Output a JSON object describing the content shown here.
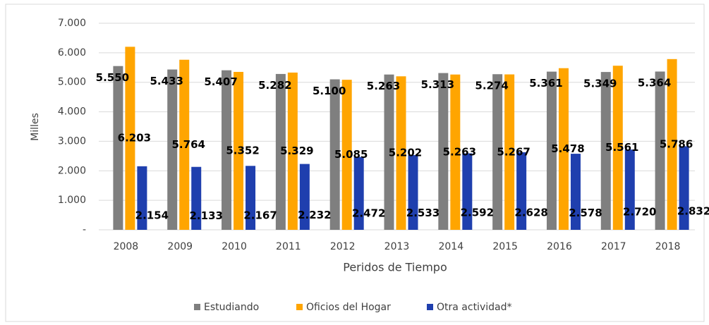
{
  "chart_data": {
    "type": "bar",
    "y_label": "Milles",
    "x_label": "Peridos de Tiempo",
    "categories": [
      "2008",
      "2009",
      "2010",
      "2011",
      "2012",
      "2013",
      "2014",
      "2015",
      "2016",
      "2017",
      "2018"
    ],
    "series": [
      {
        "name": "Estudiando",
        "color": "#7f7f7f",
        "values": [
          5550,
          5433,
          5407,
          5282,
          5100,
          5263,
          5313,
          5274,
          5361,
          5349,
          5364
        ],
        "value_labels": [
          "5.550",
          "5.433",
          "5.407",
          "5.282",
          "5.100",
          "5.263",
          "5.313",
          "5.274",
          "5.361",
          "5.349",
          "5.364"
        ]
      },
      {
        "name": "Oficios del Hogar",
        "color": "#ffa500",
        "values": [
          6203,
          5764,
          5352,
          5329,
          5085,
          5202,
          5263,
          5267,
          5478,
          5561,
          5786
        ],
        "value_labels": [
          "6.203",
          "5.764",
          "5.352",
          "5.329",
          "5.085",
          "5.202",
          "5.263",
          "5.267",
          "5.478",
          "5.561",
          "5.786"
        ]
      },
      {
        "name": "Otra actividad*",
        "color": "#1f3fae",
        "values": [
          2154,
          2133,
          2167,
          2232,
          2472,
          2533,
          2592,
          2628,
          2578,
          2720,
          2832
        ],
        "value_labels": [
          "2.154",
          "2.133",
          "2.167",
          "2.232",
          "2.472",
          "2.533",
          "2.592",
          "2.628",
          "2.578",
          "2.720",
          "2.832"
        ]
      }
    ],
    "ylim": [
      0,
      7000
    ],
    "yticks": [
      {
        "value": 0,
        "label": "-"
      },
      {
        "value": 1000,
        "label": "1.000"
      },
      {
        "value": 2000,
        "label": "2.000"
      },
      {
        "value": 3000,
        "label": "3.000"
      },
      {
        "value": 4000,
        "label": "4.000"
      },
      {
        "value": 5000,
        "label": "5.000"
      },
      {
        "value": 6000,
        "label": "6.000"
      },
      {
        "value": 7000,
        "label": "7.000"
      }
    ],
    "grid": true,
    "legend": "bottom"
  }
}
